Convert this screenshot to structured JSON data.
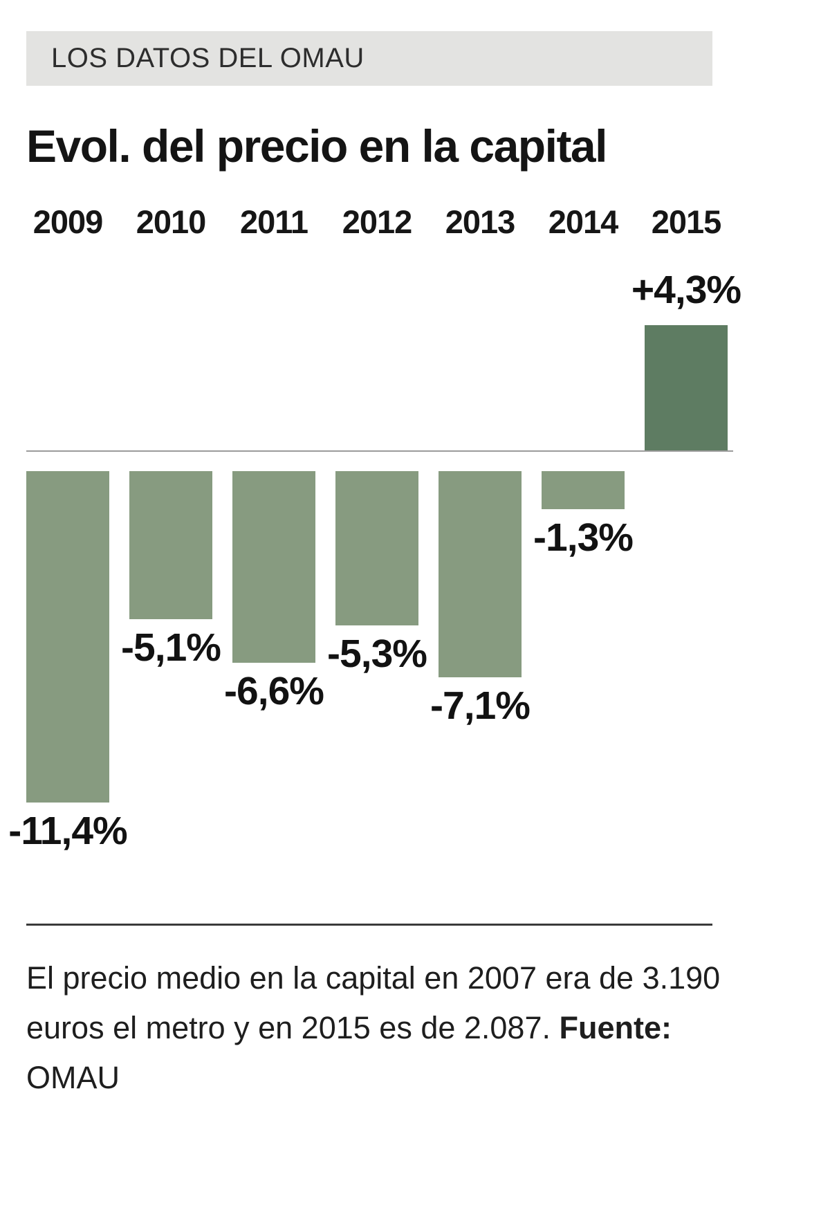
{
  "kicker": "LOS DATOS DEL OMAU",
  "title": "Evol. del precio en la capital",
  "footer": {
    "text": "El precio medio en la capital en 2007 era de 3.190 euros el metro y en 2015 es de 2.087.",
    "source_label": "Fuente:",
    "source": "OMAU"
  },
  "colors": {
    "bar_negative": "#879b80",
    "bar_positive": "#5e7c62",
    "kicker_bg": "#e3e3e1",
    "zero_line": "#9b9b9b",
    "divider": "#3a3a3a"
  },
  "chart_data": {
    "type": "bar",
    "title": "Evol. del precio en la capital",
    "categories": [
      "2009",
      "2010",
      "2011",
      "2012",
      "2013",
      "2014",
      "2015"
    ],
    "values": [
      -11.4,
      -5.1,
      -6.6,
      -5.3,
      -7.1,
      -1.3,
      4.3
    ],
    "value_labels": [
      "-11,4%",
      "-5,1%",
      "-6,6%",
      "-5,3%",
      "-7,1%",
      "-1,3%",
      "+4,3%"
    ],
    "unit": "%",
    "xlabel": "",
    "ylabel": "",
    "ylim": [
      -12,
      5
    ],
    "baseline": 0,
    "grid": false,
    "legend": false,
    "label_position": "outside-end"
  }
}
